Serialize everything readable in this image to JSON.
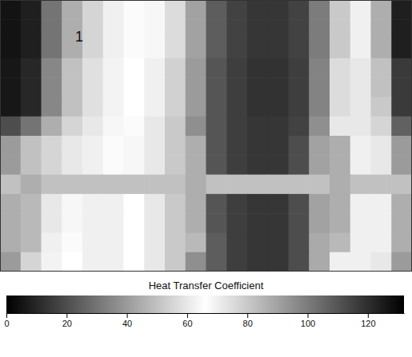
{
  "chart_data": {
    "type": "heatmap",
    "title": "Heat Transfer Coefficient",
    "annotation": "1",
    "tick_labels": false,
    "cells": [
      [
        5,
        8,
        30,
        45,
        55,
        62,
        65,
        68,
        75,
        90,
        108,
        115,
        118,
        118,
        115,
        100,
        80,
        62,
        45,
        8
      ],
      [
        5,
        8,
        30,
        45,
        55,
        62,
        65,
        68,
        75,
        90,
        108,
        115,
        118,
        118,
        115,
        100,
        80,
        62,
        45,
        8
      ],
      [
        5,
        8,
        30,
        45,
        55,
        62,
        65,
        68,
        75,
        90,
        108,
        115,
        118,
        118,
        115,
        100,
        80,
        62,
        45,
        8
      ],
      [
        6,
        10,
        35,
        50,
        58,
        63,
        66,
        70,
        78,
        92,
        110,
        116,
        119,
        119,
        116,
        98,
        75,
        60,
        50,
        15
      ],
      [
        6,
        10,
        35,
        50,
        58,
        63,
        66,
        70,
        78,
        92,
        110,
        116,
        119,
        119,
        116,
        98,
        75,
        60,
        50,
        15
      ],
      [
        6,
        10,
        35,
        50,
        58,
        63,
        66,
        70,
        78,
        92,
        110,
        116,
        119,
        119,
        116,
        98,
        75,
        60,
        52,
        15
      ],
      [
        20,
        30,
        45,
        55,
        60,
        64,
        67,
        72,
        80,
        95,
        110,
        116,
        118,
        118,
        115,
        95,
        72,
        60,
        55,
        25
      ],
      [
        40,
        50,
        55,
        60,
        62,
        65,
        68,
        72,
        80,
        45,
        110,
        116,
        118,
        118,
        112,
        90,
        45,
        62,
        60,
        40
      ],
      [
        40,
        50,
        55,
        60,
        62,
        65,
        68,
        72,
        80,
        45,
        110,
        116,
        118,
        118,
        112,
        90,
        45,
        62,
        60,
        40
      ],
      [
        50,
        45,
        50,
        50,
        50,
        50,
        50,
        50,
        50,
        45,
        50,
        50,
        50,
        50,
        50,
        50,
        45,
        50,
        50,
        50
      ],
      [
        45,
        48,
        60,
        64,
        62,
        62,
        66,
        72,
        80,
        45,
        110,
        116,
        118,
        118,
        112,
        90,
        45,
        62,
        62,
        45
      ],
      [
        45,
        48,
        60,
        64,
        62,
        62,
        66,
        72,
        80,
        45,
        110,
        116,
        118,
        118,
        112,
        90,
        45,
        62,
        62,
        45
      ],
      [
        45,
        48,
        62,
        65,
        62,
        62,
        66,
        72,
        80,
        48,
        108,
        116,
        118,
        118,
        112,
        88,
        48,
        62,
        62,
        45
      ],
      [
        40,
        55,
        63,
        66,
        62,
        62,
        66,
        72,
        80,
        95,
        108,
        116,
        118,
        118,
        112,
        88,
        70,
        62,
        60,
        40
      ]
    ],
    "colorbar": {
      "range": [
        0,
        132
      ],
      "ticks": [
        0,
        20,
        40,
        60,
        80,
        100,
        120
      ],
      "colors": [
        "#000000",
        "#ffffff",
        "#000000"
      ]
    }
  }
}
